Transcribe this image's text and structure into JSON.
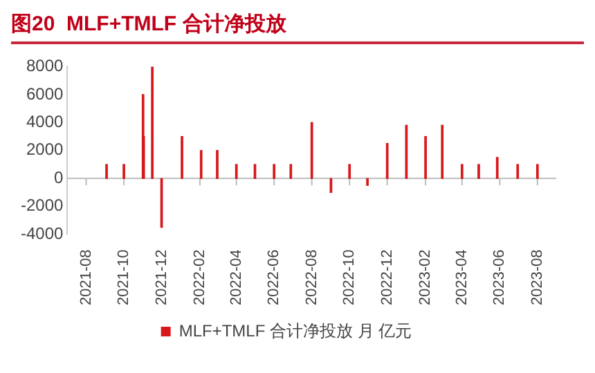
{
  "chart_data": {
    "type": "bar",
    "title": "图20  MLF+TMLF 合计净投放",
    "x": [
      "2021-09-03",
      "2021-10-01",
      "2021-11-01",
      "2021-11-02",
      "2021-11-16",
      "2021-12-01",
      "2022-01-03",
      "2022-02-03",
      "2022-03-01",
      "2022-04-01",
      "2022-05-01",
      "2022-06-01",
      "2022-06-28",
      "2022-08-01",
      "2022-09-01",
      "2022-10-01",
      "2022-10-30",
      "2022-12-01",
      "2023-01-01",
      "2023-02-01",
      "2023-02-28",
      "2023-04-01",
      "2023-04-28",
      "2023-05-28",
      "2023-06-30",
      "2023-08-01"
    ],
    "series": [
      {
        "name": "MLF+TMLF 合计净投放 月 亿元",
        "color": "#d7191c",
        "values": [
          1000,
          1000,
          6000,
          3000,
          8000,
          -3500,
          3000,
          2000,
          2000,
          1000,
          1000,
          1000,
          1000,
          4000,
          -1000,
          1000,
          -500,
          2500,
          3800,
          3000,
          3800,
          1000,
          1000,
          1500,
          1000,
          1000
        ]
      }
    ],
    "xlim": [
      "2021-08-01",
      "2023-08-01"
    ],
    "xticks": [
      "2021-08",
      "2021-10",
      "2021-12",
      "2022-02",
      "2022-04",
      "2022-06",
      "2022-08",
      "2022-10",
      "2022-12",
      "2023-02",
      "2023-04",
      "2023-06",
      "2023-08"
    ],
    "ylim": [
      -4000,
      8000
    ],
    "yticks": [
      -4000,
      -2000,
      0,
      2000,
      4000,
      6000,
      8000
    ],
    "legend": "bottom"
  }
}
